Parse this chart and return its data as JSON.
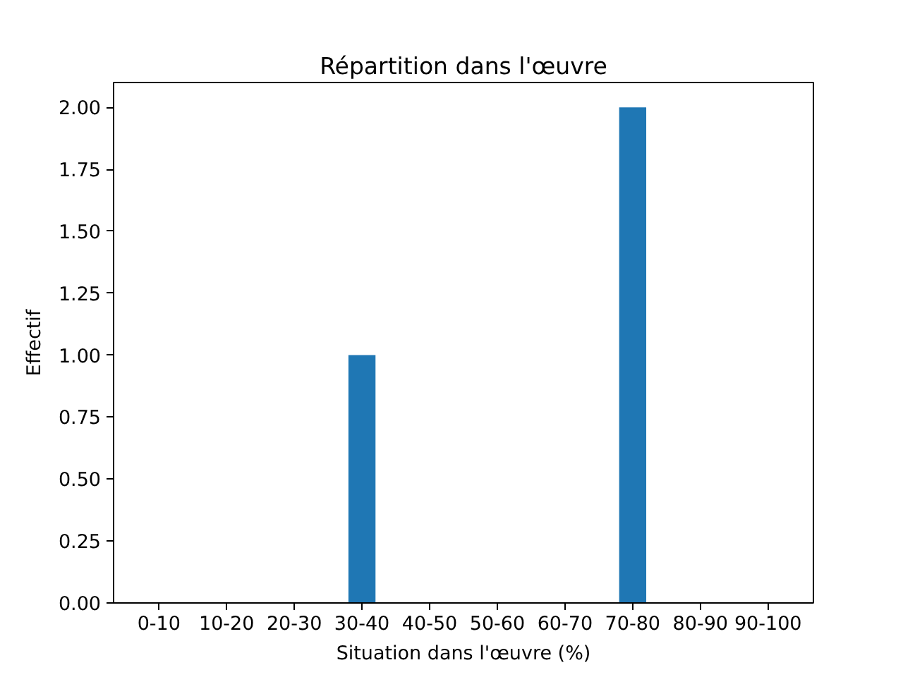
{
  "chart_data": {
    "type": "bar",
    "title": "Répartition dans l'œuvre",
    "xlabel": "Situation dans l'œuvre (%)",
    "ylabel": "Effectif",
    "categories": [
      "0-10",
      "10-20",
      "20-30",
      "30-40",
      "40-50",
      "50-60",
      "60-70",
      "70-80",
      "80-90",
      "90-100"
    ],
    "values": [
      0,
      0,
      0,
      1,
      0,
      0,
      0,
      2,
      0,
      0
    ],
    "color": "#1f77b4",
    "ylim": [
      0,
      2.1
    ],
    "yticks": [
      {
        "value": 0,
        "label": "0.00"
      },
      {
        "value": 0.25,
        "label": "0.25"
      },
      {
        "value": 0.5,
        "label": "0.50"
      },
      {
        "value": 0.75,
        "label": "0.75"
      },
      {
        "value": 1,
        "label": "1.00"
      },
      {
        "value": 1.25,
        "label": "1.25"
      },
      {
        "value": 1.5,
        "label": "1.50"
      },
      {
        "value": 1.75,
        "label": "1.75"
      },
      {
        "value": 2,
        "label": "2.00"
      }
    ]
  }
}
